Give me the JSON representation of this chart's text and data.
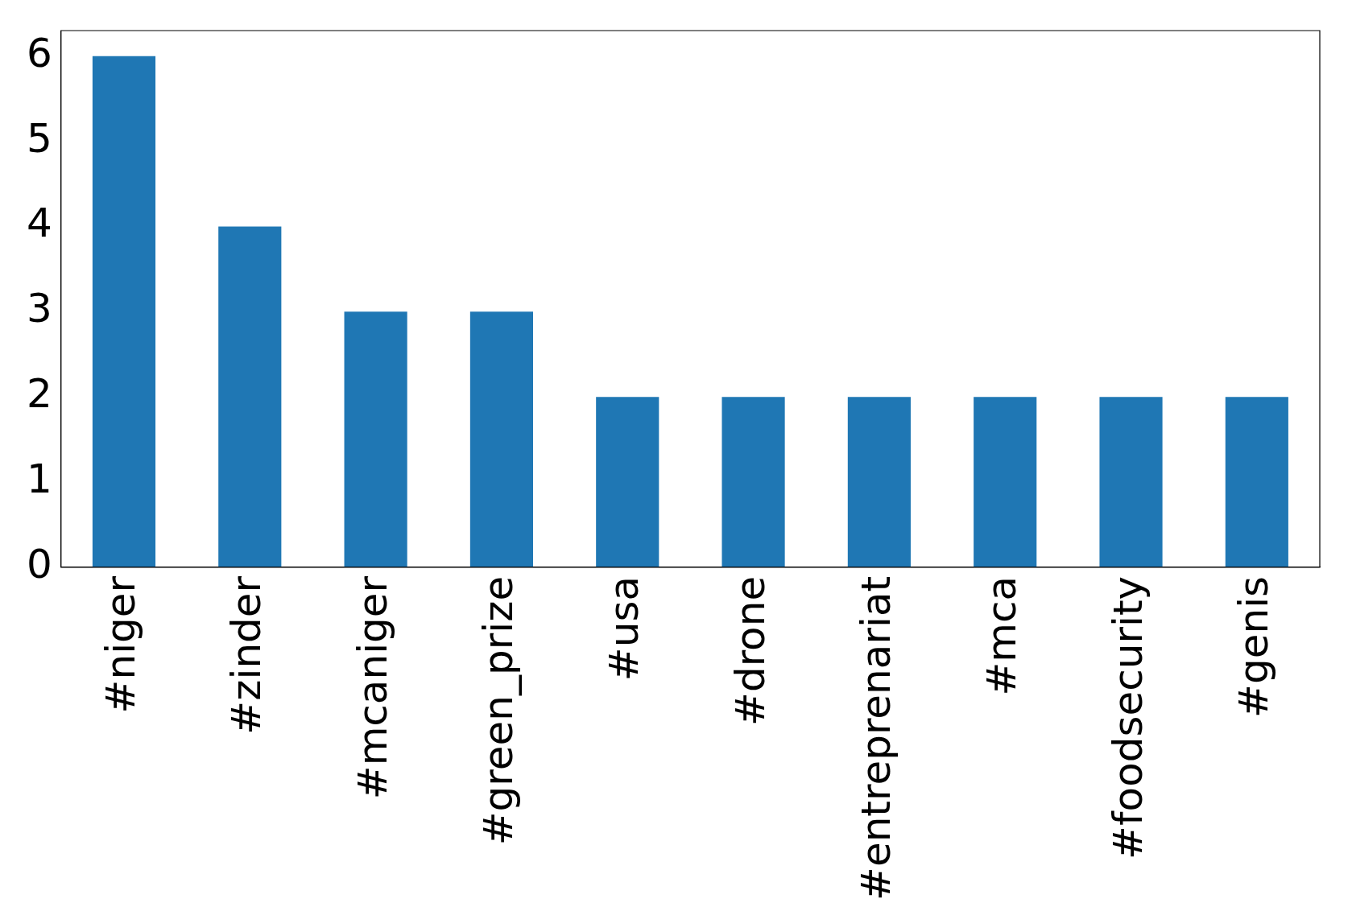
{
  "chart_data": {
    "type": "bar",
    "categories": [
      "#niger",
      "#zinder",
      "#mcaniger",
      "#green_prize",
      "#usa",
      "#drone",
      "#entreprenariat",
      "#mca",
      "#foodsecurity",
      "#genis"
    ],
    "values": [
      6,
      4,
      3,
      3,
      2,
      2,
      2,
      2,
      2,
      2
    ],
    "color": "#1f77b4",
    "ylim": [
      0,
      6.3
    ],
    "yticks": [
      0,
      1,
      2,
      3,
      4,
      5,
      6
    ],
    "grid": false,
    "legend": false
  }
}
